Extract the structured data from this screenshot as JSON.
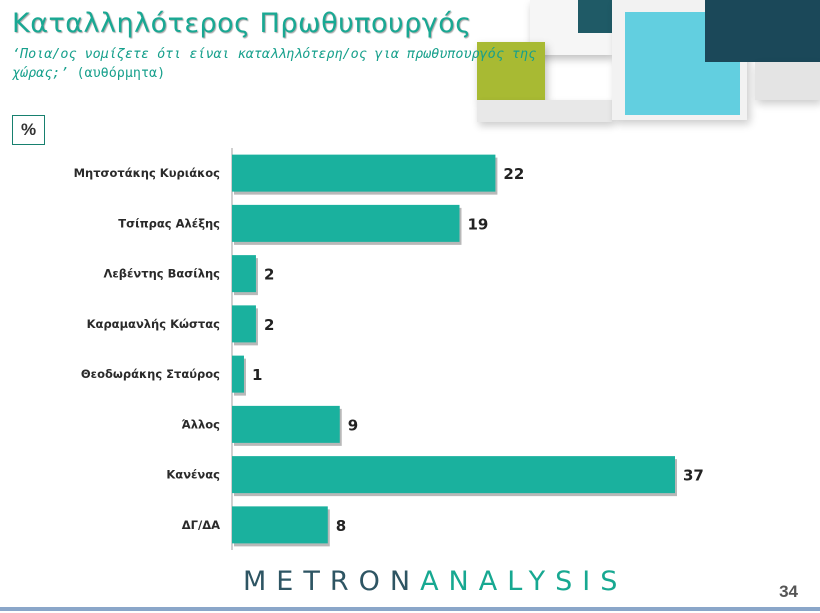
{
  "header": {
    "title": "Καταλληλότερος Πρωθυπουργός",
    "subtitle_question": "‘Ποια/ος νομίζετε ότι είναι καταλληλότερη/ος για πρωθυπουργός της χώρας;’",
    "subtitle_note": "(αυθόρμητα)"
  },
  "unit_label": "%",
  "footer": {
    "brand_part1": "METRON",
    "brand_part2": "ANALYSIS",
    "page_number": "34"
  },
  "colors": {
    "bar": "#1ab19e",
    "title": "#19a893",
    "brand_dark": "#2e5563",
    "brand_accent": "#17a891"
  },
  "chart_data": {
    "type": "bar",
    "orientation": "horizontal",
    "title": "",
    "xlabel": "",
    "ylabel": "",
    "categories": [
      "Μητσοτάκης Κυριάκος",
      "Τσίπρας Αλέξης",
      "Λεβέντης Βασίλης",
      "Καραμανλής Κώστας",
      "Θεοδωράκης Σταύρος",
      "Άλλος",
      "Κανένας",
      "ΔΓ/ΔΑ"
    ],
    "values": [
      22,
      19,
      2,
      2,
      1,
      9,
      37,
      8
    ],
    "data_labels": [
      "22",
      "19",
      "2",
      "2",
      "1",
      "9",
      "37",
      "8"
    ],
    "xlim": [
      0,
      37
    ],
    "grid": false,
    "legend": "none"
  }
}
